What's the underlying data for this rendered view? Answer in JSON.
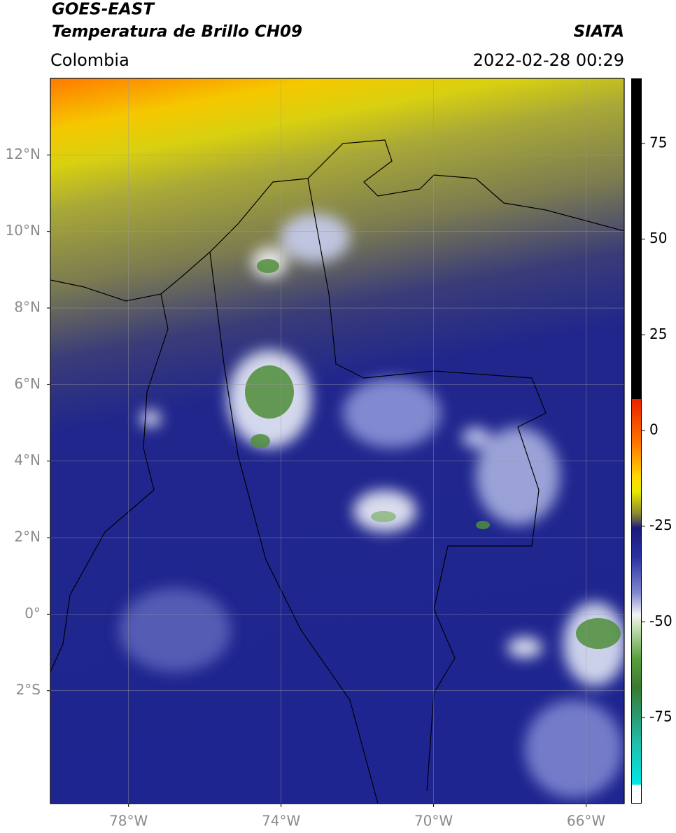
{
  "header": {
    "title": "GOES-EAST",
    "subtitle": "Temperatura de Brillo CH09",
    "region": "Colombia",
    "source": "SIATA",
    "datetime": "2022-02-28 00:29"
  },
  "map": {
    "xlim": [
      -80.05,
      -65.0
    ],
    "ylim": [
      -4.95,
      14.0
    ],
    "xticks": [
      {
        "value": -78,
        "label": "78°W"
      },
      {
        "value": -74,
        "label": "74°W"
      },
      {
        "value": -70,
        "label": "70°W"
      },
      {
        "value": -66,
        "label": "66°W"
      }
    ],
    "yticks": [
      {
        "value": 12,
        "label": "12°N"
      },
      {
        "value": 10,
        "label": "10°N"
      },
      {
        "value": 8,
        "label": "8°N"
      },
      {
        "value": 6,
        "label": "6°N"
      },
      {
        "value": 4,
        "label": "4°N"
      },
      {
        "value": 2,
        "label": "2°N"
      },
      {
        "value": 0,
        "label": "0°"
      },
      {
        "value": -2,
        "label": "2°S"
      }
    ],
    "grid": true
  },
  "colorbar": {
    "lim": [
      -97.5,
      92
    ],
    "ticks": [
      75,
      50,
      25,
      0,
      -25,
      -50,
      -75
    ]
  }
}
